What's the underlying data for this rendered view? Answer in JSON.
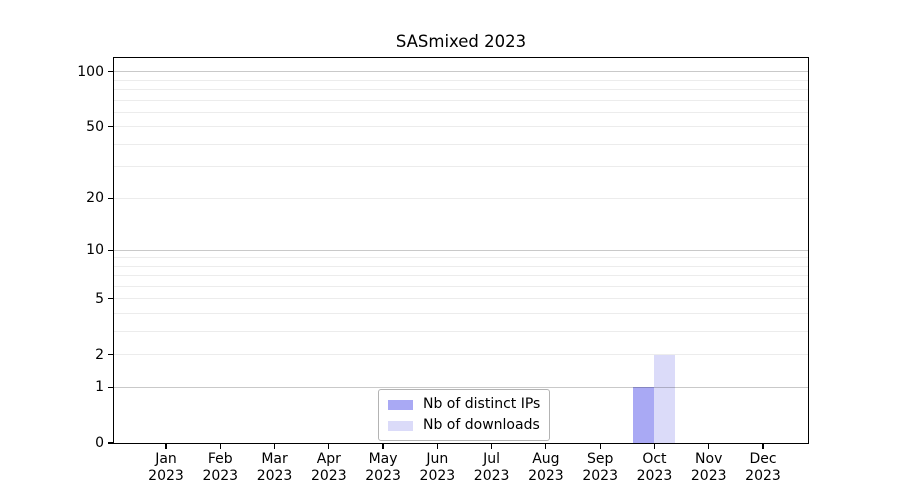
{
  "chart_data": {
    "type": "bar",
    "title": "SASmixed 2023",
    "categories": [
      "Jan",
      "Feb",
      "Mar",
      "Apr",
      "May",
      "Jun",
      "Jul",
      "Aug",
      "Sep",
      "Oct",
      "Nov",
      "Dec"
    ],
    "xtick_year": "2023",
    "series": [
      {
        "name": "Nb of distinct IPs",
        "color": "#a9a9f4",
        "values": [
          0,
          0,
          0,
          0,
          0,
          0,
          0,
          0,
          0,
          1,
          0,
          0
        ]
      },
      {
        "name": "Nb of downloads",
        "color": "#dbdbf9",
        "values": [
          0,
          0,
          0,
          0,
          0,
          0,
          0,
          0,
          0,
          2,
          0,
          0
        ]
      }
    ],
    "yscale": "log1p",
    "ylim": [
      0,
      119
    ],
    "yticks": [
      0,
      1,
      2,
      5,
      10,
      20,
      50,
      100
    ],
    "major_gridlines": [
      1,
      10,
      100
    ],
    "minor_gridlines": [
      2,
      3,
      4,
      5,
      6,
      7,
      8,
      9,
      20,
      30,
      40,
      50,
      60,
      70,
      80,
      90
    ],
    "grid": true,
    "legend_position": "lower center inside",
    "xlabel": "",
    "ylabel": ""
  },
  "colors": {
    "background": "#ffffff",
    "spine": "#000000",
    "text": "#000000",
    "major_grid": "#c9c9c9",
    "minor_grid": "#ececec",
    "legend_border": "#b3b3b3"
  }
}
